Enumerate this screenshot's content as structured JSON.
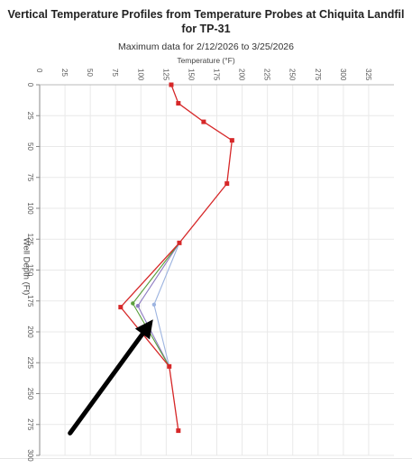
{
  "header": {
    "title_line1": "Vertical Temperature Profiles from Temperature Probes at Chiquita Landfil",
    "title_line2": "for TP-31",
    "subtitle": "Maximum data for 2/12/2026 to 3/25/2026"
  },
  "chart_data": {
    "type": "line",
    "title": "Vertical Temperature Profiles from Temperature Probes at Chiquita Landfil for TP-31",
    "subtitle": "Maximum data for 2/12/2026 to 3/25/2026",
    "xlabel": "Temperature (°F)",
    "ylabel": "Well Depth (Ft)",
    "x_axis_position": "top",
    "y_axis_inverted": true,
    "xlim": [
      0,
      350
    ],
    "ylim": [
      0,
      300
    ],
    "xticks": [
      "0",
      "25",
      "50",
      "75",
      "100",
      "125",
      "150",
      "175",
      "200",
      "225",
      "250",
      "275",
      "300",
      "325"
    ],
    "yticks": [
      "0",
      "25",
      "50",
      "75",
      "100",
      "125",
      "150",
      "175",
      "200",
      "225",
      "250",
      "275",
      "300"
    ],
    "grid": true,
    "series": [
      {
        "color": "#d62728",
        "points": [
          [
            130,
            0
          ],
          [
            137,
            15
          ],
          [
            162,
            30
          ],
          [
            190,
            45
          ],
          [
            185,
            80
          ],
          [
            138,
            128
          ],
          [
            80,
            180
          ],
          [
            128,
            228
          ],
          [
            137,
            280
          ]
        ]
      },
      {
        "color": "#5a9e3c",
        "points": [
          [
            138,
            128
          ],
          [
            92,
            177
          ],
          [
            128,
            228
          ]
        ]
      },
      {
        "color": "#8e7cc3",
        "points": [
          [
            138,
            128
          ],
          [
            97,
            179
          ],
          [
            128,
            228
          ]
        ]
      },
      {
        "color": "#9db4e0",
        "points": [
          [
            138,
            128
          ],
          [
            113,
            178
          ],
          [
            128,
            228
          ]
        ]
      }
    ],
    "annotation": {
      "type": "arrow",
      "from": [
        30,
        282
      ],
      "to": [
        112,
        190
      ],
      "color": "#000000"
    }
  }
}
